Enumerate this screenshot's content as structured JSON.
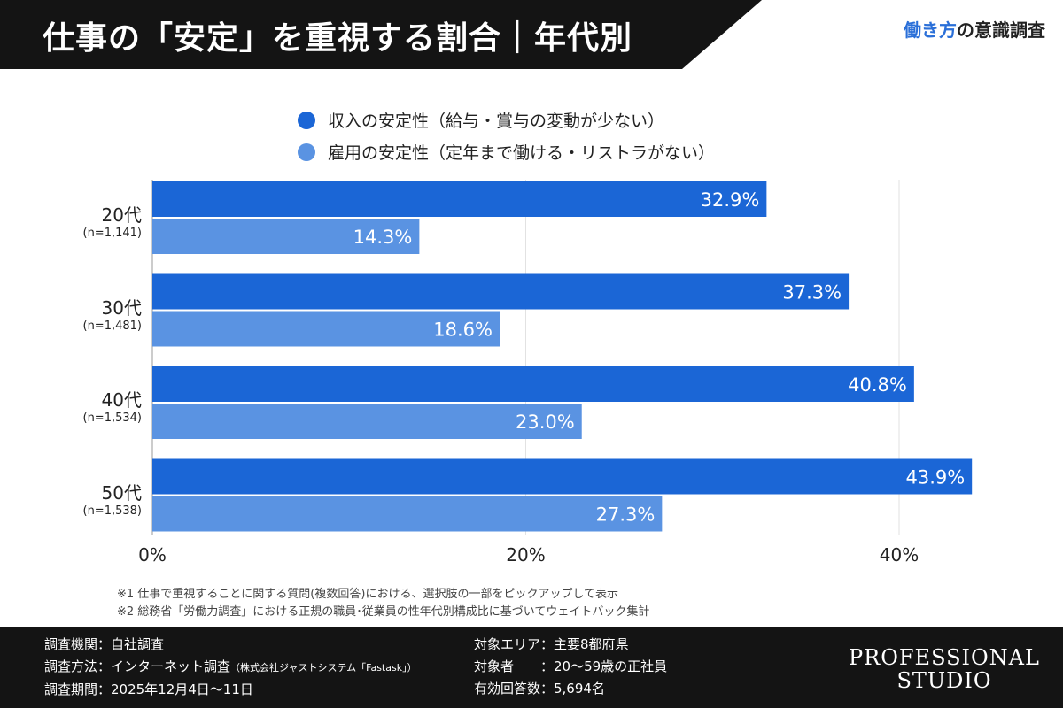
{
  "header": {
    "title": "仕事の「安定」を重視する割合｜年代別",
    "brand_highlight": "働き方",
    "brand_rest": "の意識調査"
  },
  "colors": {
    "series1": "#1b66d6",
    "series2": "#5a93e2"
  },
  "chart_data": {
    "type": "bar",
    "orientation": "horizontal",
    "categories": [
      "20代",
      "30代",
      "40代",
      "50代"
    ],
    "category_samples": [
      "(n=1,141)",
      "(n=1,481)",
      "(n=1,534)",
      "(n=1,538)"
    ],
    "series": [
      {
        "name": "収入の安定性（給与・賞与の変動が少ない）",
        "values": [
          32.9,
          37.3,
          40.8,
          43.9
        ],
        "labels": [
          "32.9%",
          "37.3%",
          "40.8%",
          "43.9%"
        ]
      },
      {
        "name": "雇用の安定性（定年まで働ける・リストラがない）",
        "values": [
          14.3,
          18.6,
          23.0,
          27.3
        ],
        "labels": [
          "14.3%",
          "18.6%",
          "23.0%",
          "27.3%"
        ]
      }
    ],
    "xticks": [
      "0%",
      "20%",
      "40%"
    ],
    "xtick_values": [
      0,
      20,
      40
    ],
    "xlim": [
      0,
      45
    ],
    "grid": true,
    "legend": "top"
  },
  "notes": [
    "※1 仕事で重視することに関する質問(複数回答)における、選択肢の一部をピックアップして表示",
    "※2 総務省「労働力調査」における正規の職員･従業員の性年代別構成比に基づいてウェイトバック集計"
  ],
  "footer": {
    "left": [
      "調査機関：自社調査",
      "調査方法：インターネット調査",
      "調査期間：2025年12月4日〜11日"
    ],
    "method_small": "（株式会社ジャストシステム「Fastask」）",
    "right": [
      "対象エリア：主要8都府県",
      "対象者　　：20〜59歳の正社員",
      "有効回答数：5,694名"
    ],
    "logo": [
      "PROFESSIONAL",
      "STUDIO"
    ]
  }
}
